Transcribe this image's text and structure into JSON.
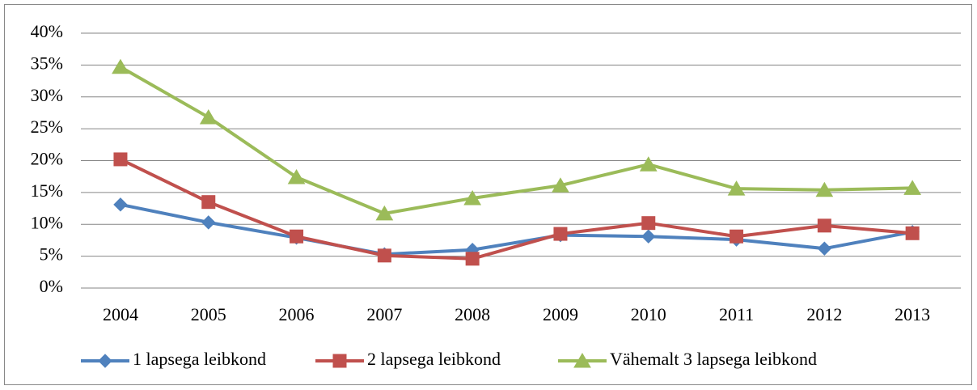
{
  "chart_data": {
    "type": "line",
    "categories": [
      "2004",
      "2005",
      "2006",
      "2007",
      "2008",
      "2009",
      "2010",
      "2011",
      "2012",
      "2013"
    ],
    "series": [
      {
        "name": "1 lapsega leibkond",
        "color": "#4f81bd",
        "marker": "diamond",
        "values": [
          13.1,
          10.3,
          7.9,
          5.3,
          6.0,
          8.3,
          8.1,
          7.6,
          6.2,
          8.8
        ]
      },
      {
        "name": "2 lapsega leibkond",
        "color": "#c0504d",
        "marker": "square",
        "values": [
          20.2,
          13.5,
          8.1,
          5.1,
          4.6,
          8.5,
          10.2,
          8.1,
          9.8,
          8.6
        ]
      },
      {
        "name": "Vähemalt 3 lapsega leibkond",
        "color": "#9bbb59",
        "marker": "triangle",
        "values": [
          34.7,
          26.8,
          17.4,
          11.7,
          14.1,
          16.1,
          19.4,
          15.6,
          15.4,
          15.7
        ]
      }
    ],
    "ylim": [
      0,
      40
    ],
    "yticks": [
      {
        "value": 0,
        "label": "0%"
      },
      {
        "value": 5,
        "label": "5%"
      },
      {
        "value": 10,
        "label": "10%"
      },
      {
        "value": 15,
        "label": "15%"
      },
      {
        "value": 20,
        "label": "20%"
      },
      {
        "value": 25,
        "label": "25%"
      },
      {
        "value": 30,
        "label": "30%"
      },
      {
        "value": 35,
        "label": "35%"
      },
      {
        "value": 40,
        "label": "40%"
      }
    ],
    "grid": true,
    "legend": "bottom"
  }
}
